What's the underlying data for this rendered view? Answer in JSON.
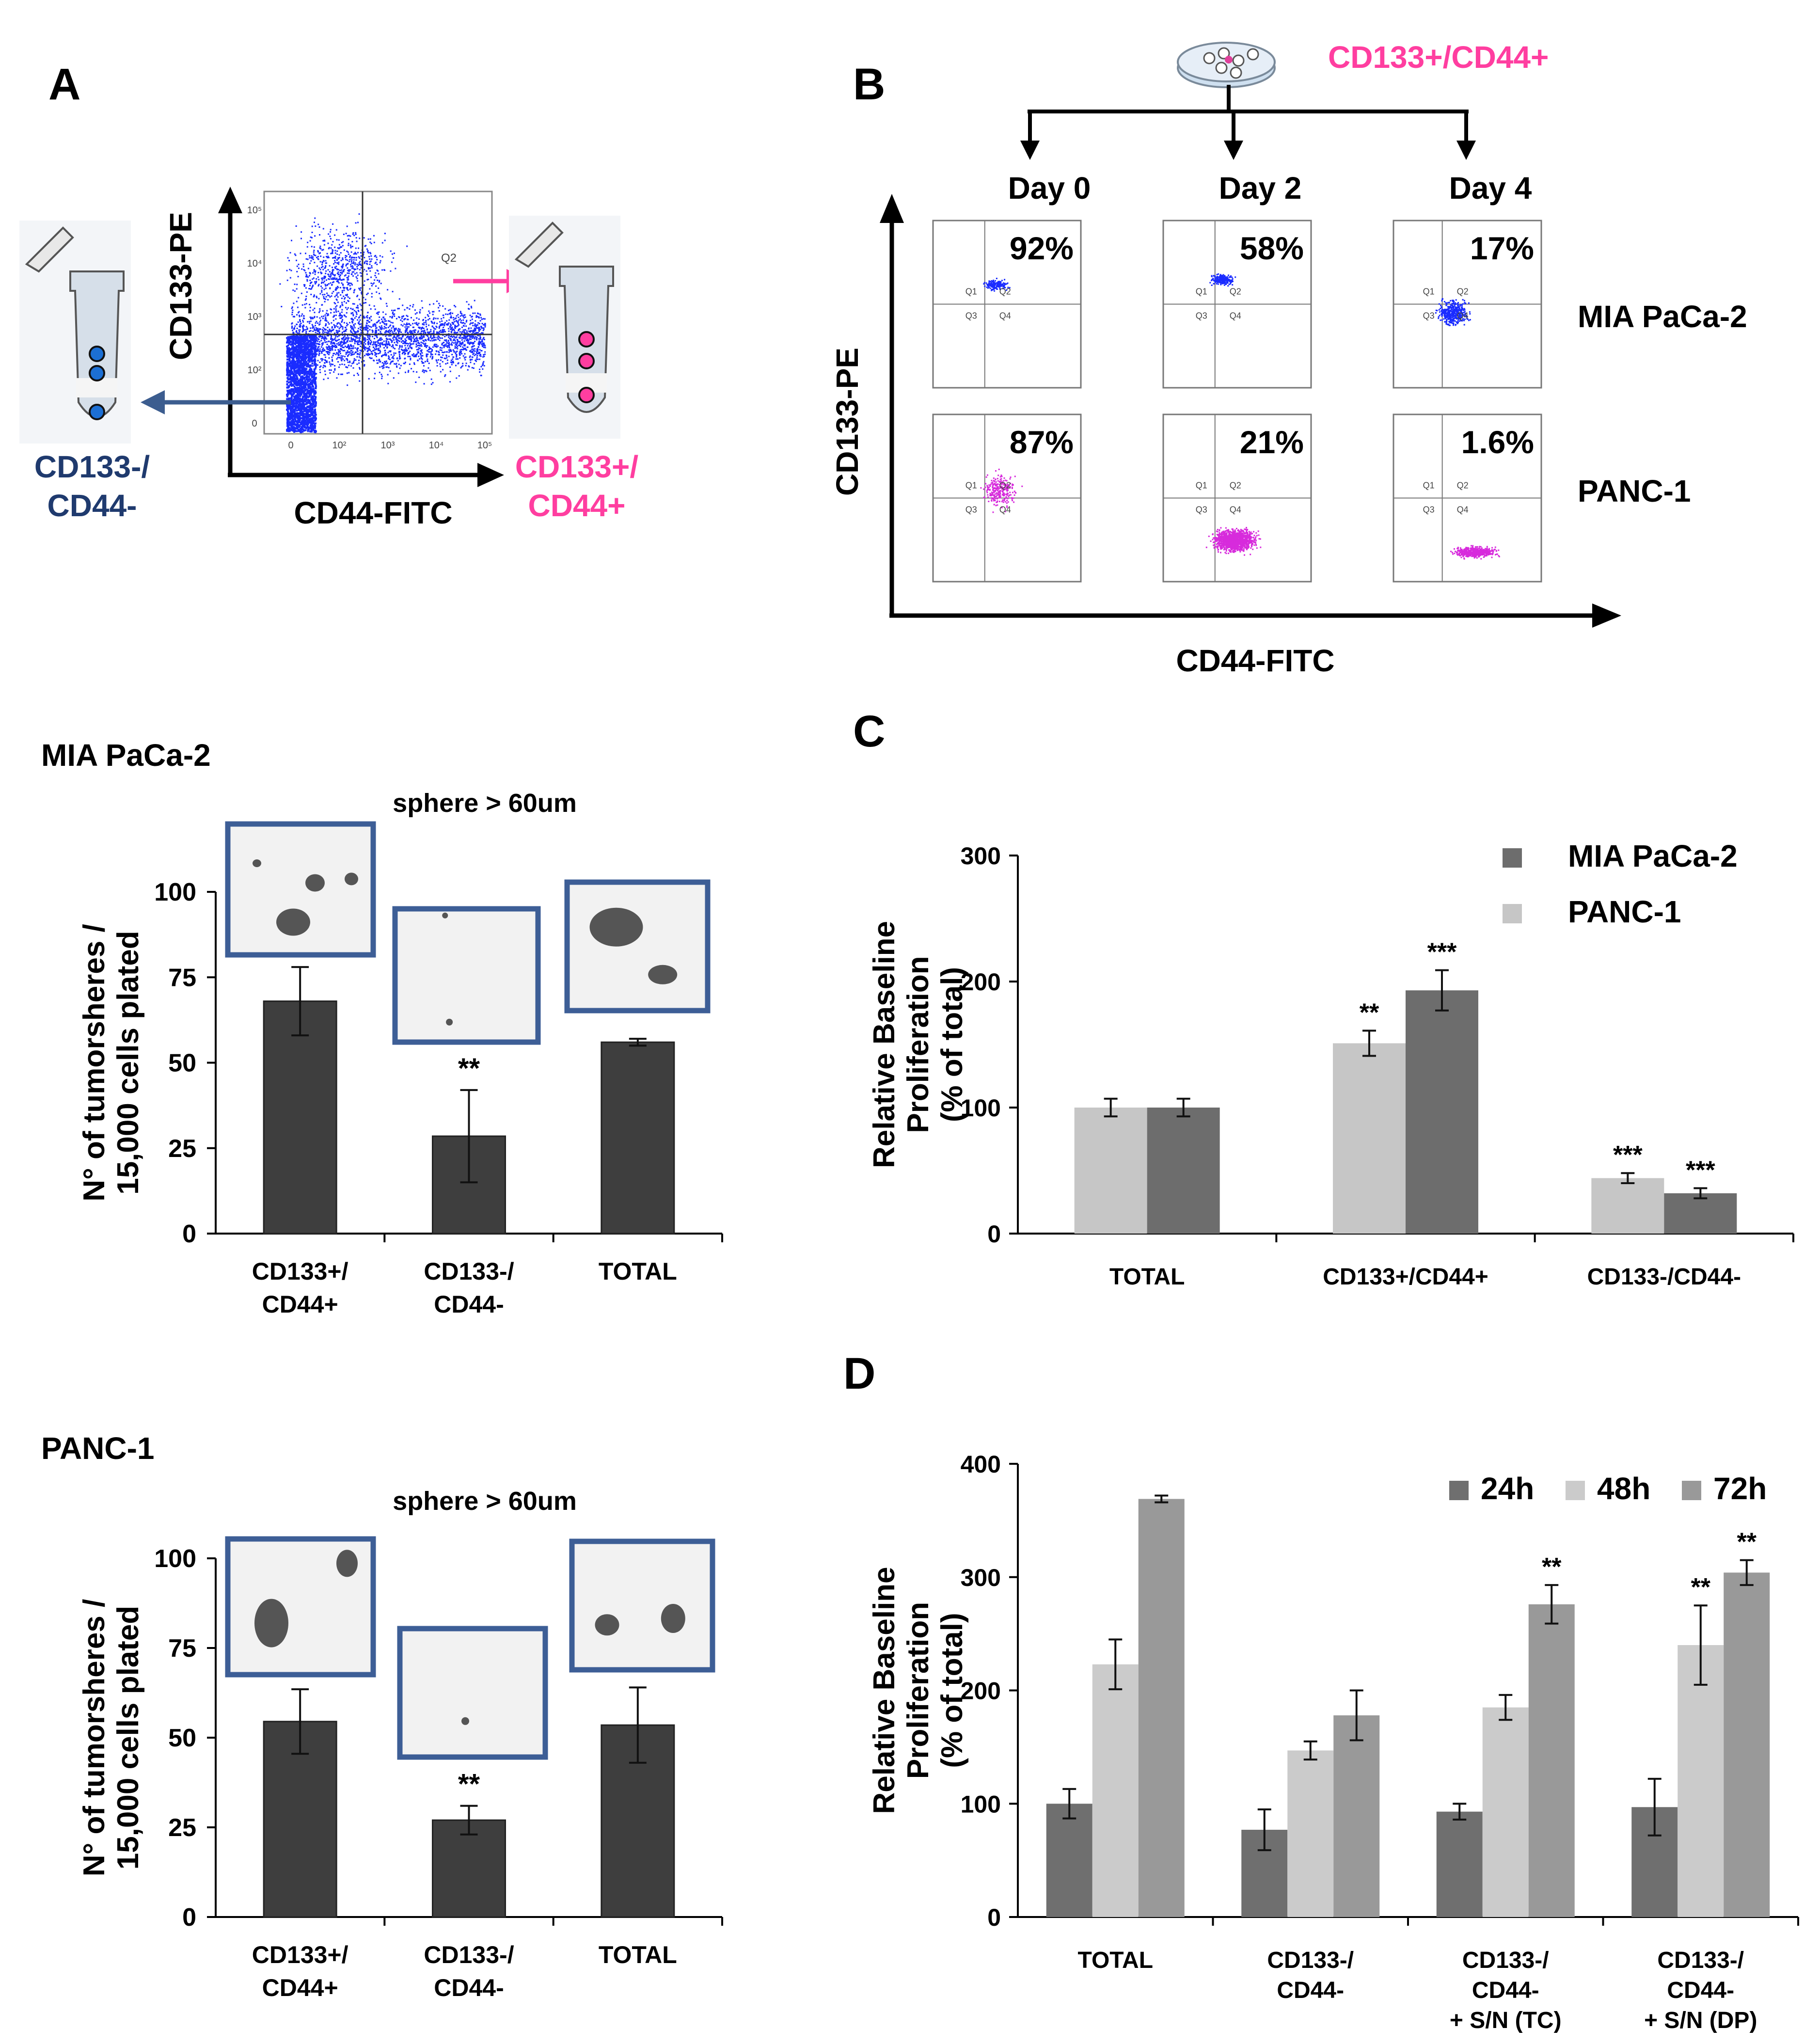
{
  "colors": {
    "neg_blue": "#1f3a6e",
    "pos_pink": "#ff3ea0",
    "dot_blue": "#1a2cff",
    "dot_magenta": "#d72bdc",
    "bar_dark": "#3e3e3e",
    "frame_blue": "#3d5e96",
    "mia_gray": "#6d6d6d",
    "panc_gray": "#c6c6c6",
    "h24_gray": "#6f6f6f",
    "h48_gray": "#cbcbcb",
    "h72_gray": "#999999"
  },
  "panel_a": {
    "letter": "A",
    "y_label": "CD133-PE",
    "x_label": "CD44-FITC",
    "q2_label": "Q2",
    "neg_label_1": "CD133-/",
    "neg_label_2": "CD44-",
    "pos_label_1": "CD133+/",
    "pos_label_2": "CD44+",
    "x_ticks": [
      "0",
      "10²",
      "10³",
      "10⁴",
      "10⁵"
    ],
    "y_ticks": [
      "0",
      "10²",
      "10³",
      "10⁴",
      "10⁵"
    ]
  },
  "panel_b": {
    "letter": "B",
    "source_label": "CD133+/CD44+",
    "days": [
      "Day 0",
      "Day 2",
      "Day 4"
    ],
    "rows": [
      {
        "name": "MIA PaCa-2",
        "percents": [
          "92%",
          "58%",
          "17%"
        ]
      },
      {
        "name": "PANC-1",
        "percents": [
          "87%",
          "21%",
          "1.6%"
        ]
      }
    ],
    "quadrants": [
      "Q1",
      "Q2",
      "Q3",
      "Q4"
    ],
    "y_label": "CD133-PE",
    "x_label": "CD44-FITC"
  },
  "sphere_label": "sphere > 60um",
  "chart_data": [
    {
      "id": "mia-spheres",
      "type": "bar",
      "title": "MIA PaCa-2",
      "subtitle": "sphere > 60um",
      "ylabel_1": "N° of tumorsheres /",
      "ylabel_2": "15,000 cells plated",
      "ylim": [
        0,
        100
      ],
      "yticks": [
        0,
        25,
        50,
        75,
        100
      ],
      "categories": [
        [
          "CD133+/",
          "CD44+"
        ],
        [
          "CD133-/",
          "CD44-"
        ],
        [
          "TOTAL"
        ]
      ],
      "values": [
        68,
        28.5,
        56
      ],
      "errors": [
        10,
        13.5,
        1
      ],
      "significance": [
        "",
        "**",
        ""
      ]
    },
    {
      "id": "panc-spheres",
      "type": "bar",
      "title": "PANC-1",
      "subtitle": "sphere > 60um",
      "ylabel_1": "N° of tumorsheres /",
      "ylabel_2": "15,000 cells plated",
      "ylim": [
        0,
        100
      ],
      "yticks": [
        0,
        25,
        50,
        75,
        100
      ],
      "categories": [
        [
          "CD133+/",
          "CD44+"
        ],
        [
          "CD133-/",
          "CD44-"
        ],
        [
          "TOTAL"
        ]
      ],
      "values": [
        54.5,
        27,
        53.5
      ],
      "errors": [
        9,
        4,
        10.5
      ],
      "significance": [
        "",
        "**",
        ""
      ]
    },
    {
      "id": "panel-c",
      "type": "bar",
      "letter": "C",
      "ylabel_1": "Relative Baseline",
      "ylabel_2": "Proliferation",
      "ylabel_3": "(% of total)",
      "ylim": [
        0,
        300
      ],
      "yticks": [
        0,
        100,
        200,
        300
      ],
      "categories": [
        [
          "TOTAL"
        ],
        [
          "CD133+/CD44+"
        ],
        [
          "CD133-/CD44-"
        ]
      ],
      "legend": [
        "MIA PaCa-2",
        "PANC-1"
      ],
      "series": [
        {
          "name": "PANC-1",
          "values": [
            100,
            151,
            44
          ],
          "errors": [
            7,
            10,
            4
          ],
          "significance": [
            "",
            "**",
            "***"
          ]
        },
        {
          "name": "MIA PaCa-2",
          "values": [
            100,
            193,
            32
          ],
          "errors": [
            7,
            16,
            4
          ],
          "significance": [
            "",
            "***",
            "***"
          ]
        }
      ]
    },
    {
      "id": "panel-d",
      "type": "bar",
      "letter": "D",
      "ylabel_1": "Relative Baseline",
      "ylabel_2": "Proliferation",
      "ylabel_3": "(% of total)",
      "ylim": [
        0,
        400
      ],
      "yticks": [
        0,
        100,
        200,
        300,
        400
      ],
      "categories": [
        [
          "TOTAL"
        ],
        [
          "CD133-/",
          "CD44-"
        ],
        [
          "CD133-/",
          "CD44-",
          "+ S/N (TC)"
        ],
        [
          "CD133-/",
          "CD44-",
          "+ S/N (DP)"
        ]
      ],
      "legend": [
        "24h",
        "48h",
        "72h"
      ],
      "series": [
        {
          "name": "24h",
          "values": [
            100,
            77,
            93,
            97
          ],
          "errors": [
            13,
            18,
            7,
            25
          ],
          "significance": [
            "",
            "",
            "",
            ""
          ]
        },
        {
          "name": "48h",
          "values": [
            223,
            147,
            185,
            240
          ],
          "errors": [
            22,
            8,
            11,
            35
          ],
          "significance": [
            "",
            "",
            "",
            "**"
          ]
        },
        {
          "name": "72h",
          "values": [
            369,
            178,
            276,
            304
          ],
          "errors": [
            3,
            22,
            17,
            11
          ],
          "significance": [
            "",
            "",
            "**",
            "**"
          ]
        }
      ]
    }
  ]
}
